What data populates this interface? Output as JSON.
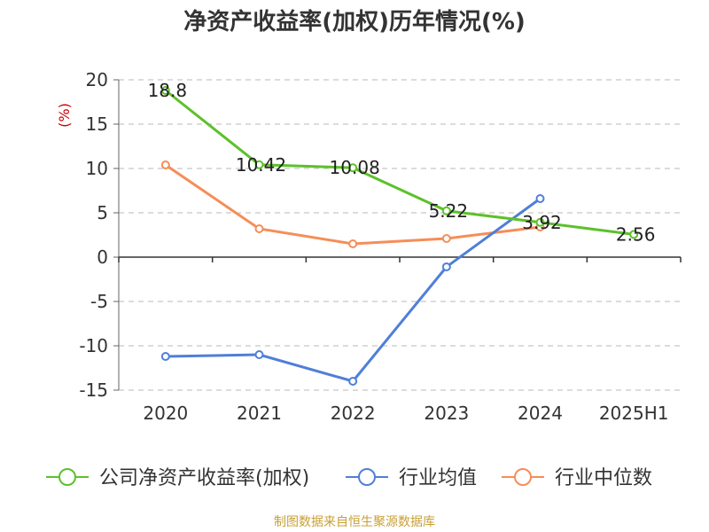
{
  "chart_data": {
    "type": "line",
    "title": "净资产收益率(加权)历年情况(%)",
    "ylabel": "(%)",
    "categories": [
      "2020",
      "2021",
      "2022",
      "2023",
      "2024",
      "2025H1"
    ],
    "ylim": [
      -15,
      20
    ],
    "yticks": [
      20,
      15,
      10,
      5,
      0,
      -5,
      -10,
      -15
    ],
    "grid": true,
    "legend_position": "bottom",
    "series": [
      {
        "name": "公司净资产收益率(加权)",
        "color": "#5dc12a",
        "values": [
          18.8,
          10.42,
          10.08,
          5.22,
          3.92,
          2.56
        ],
        "labels": [
          "18.8",
          "10.42",
          "10.08",
          "5.22",
          "3.92",
          "2.56"
        ]
      },
      {
        "name": "行业均值",
        "color": "#4f7fd8",
        "values": [
          -11.2,
          -11.0,
          -14.0,
          -1.1,
          6.6,
          null
        ]
      },
      {
        "name": "行业中位数",
        "color": "#f68d58",
        "values": [
          10.4,
          3.2,
          1.5,
          2.1,
          3.4,
          null
        ]
      }
    ]
  },
  "footer": {
    "source": "制图数据来自恒生聚源数据库"
  }
}
